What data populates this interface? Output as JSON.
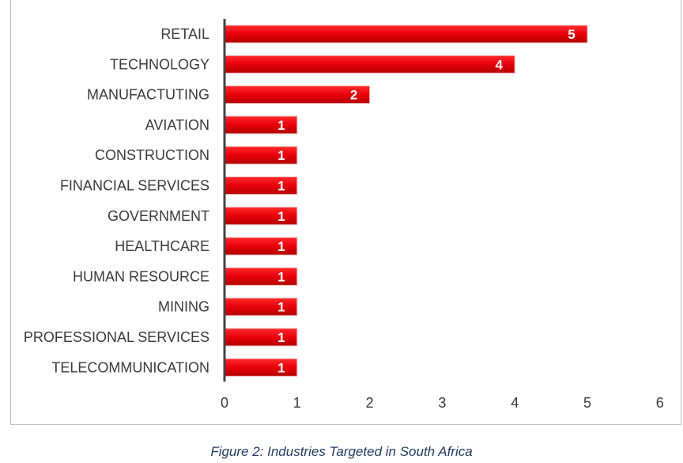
{
  "chart_data": {
    "type": "bar",
    "orientation": "horizontal",
    "categories": [
      "RETAIL",
      "TECHNOLOGY",
      "MANUFACTUTING",
      "AVIATION",
      "CONSTRUCTION",
      "FINANCIAL SERVICES",
      "GOVERNMENT",
      "HEALTHCARE",
      "HUMAN RESOURCE",
      "MINING",
      "PROFESSIONAL SERVICES",
      "TELECOMMUNICATION"
    ],
    "values": [
      5,
      4,
      2,
      1,
      1,
      1,
      1,
      1,
      1,
      1,
      1,
      1
    ],
    "data_labels": [
      "5",
      "4",
      "2",
      "1",
      "1",
      "1",
      "1",
      "1",
      "1",
      "1",
      "1",
      "1"
    ],
    "xticks": [
      "0",
      "1",
      "2",
      "3",
      "4",
      "5",
      "6"
    ],
    "xlim": [
      0,
      6
    ],
    "title": "",
    "xlabel": "",
    "ylabel": "",
    "grid": false,
    "legend": "none",
    "bar_color": "#e8000b",
    "bar_dark_color": "#b30000",
    "data_label_color": "#ffffff"
  },
  "caption": "Figure 2: Industries Targeted in South Africa"
}
